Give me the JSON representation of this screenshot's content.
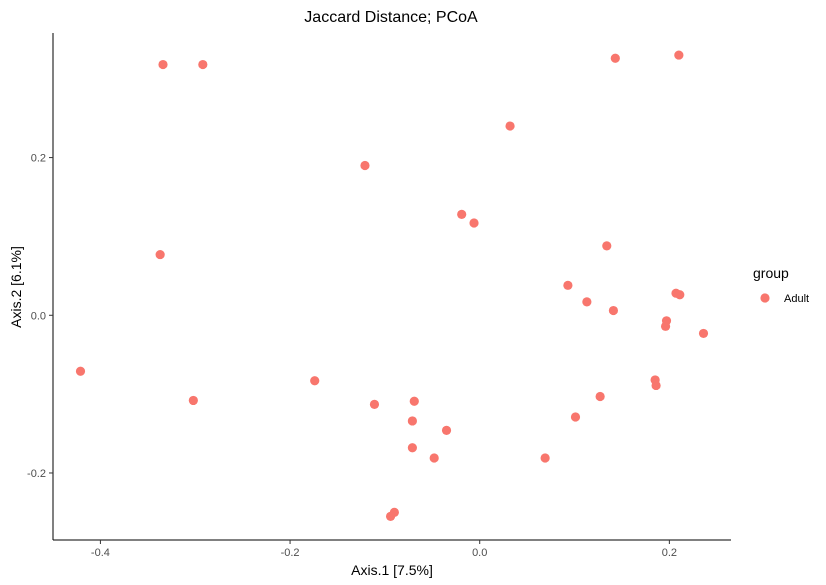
{
  "chart_data": {
    "type": "scatter",
    "title": "Jaccard Distance; PCoA",
    "xlabel": "Axis.1   [7.5%]",
    "ylabel": "Axis.2   [6.1%]",
    "xlim": [
      -0.45,
      0.265
    ],
    "ylim": [
      -0.285,
      0.358
    ],
    "xticks": [
      -0.4,
      -0.2,
      0.0,
      0.2
    ],
    "xtick_labels": [
      "-0.4",
      "-0.2",
      "0.0",
      "0.2"
    ],
    "yticks": [
      -0.2,
      0.0,
      0.2
    ],
    "ytick_labels": [
      "-0.2",
      "0.0",
      "0.2"
    ],
    "grid": false,
    "legend": {
      "title": "group",
      "position": "right",
      "entries": [
        {
          "label": "Adult",
          "color": "#F8766D"
        }
      ]
    },
    "series": [
      {
        "name": "Adult",
        "color": "#F8766D",
        "points": [
          [
            -0.334,
            0.318
          ],
          [
            -0.292,
            0.318
          ],
          [
            -0.337,
            0.077
          ],
          [
            -0.421,
            -0.071
          ],
          [
            -0.302,
            -0.108
          ],
          [
            -0.174,
            -0.083
          ],
          [
            -0.121,
            0.19
          ],
          [
            -0.111,
            -0.113
          ],
          [
            -0.094,
            -0.255
          ],
          [
            -0.09,
            -0.25
          ],
          [
            -0.069,
            -0.109
          ],
          [
            -0.071,
            -0.134
          ],
          [
            -0.071,
            -0.168
          ],
          [
            -0.048,
            -0.181
          ],
          [
            -0.035,
            -0.146
          ],
          [
            -0.019,
            0.128
          ],
          [
            -0.006,
            0.117
          ],
          [
            0.032,
            0.24
          ],
          [
            0.069,
            -0.181
          ],
          [
            0.093,
            0.038
          ],
          [
            0.101,
            -0.129
          ],
          [
            0.113,
            0.017
          ],
          [
            0.127,
            -0.103
          ],
          [
            0.134,
            0.088
          ],
          [
            0.141,
            0.006
          ],
          [
            0.143,
            0.326
          ],
          [
            0.185,
            -0.082
          ],
          [
            0.186,
            -0.089
          ],
          [
            0.196,
            -0.014
          ],
          [
            0.197,
            -0.007
          ],
          [
            0.207,
            0.028
          ],
          [
            0.211,
            0.026
          ],
          [
            0.21,
            0.33
          ],
          [
            0.236,
            -0.023
          ]
        ]
      }
    ]
  }
}
